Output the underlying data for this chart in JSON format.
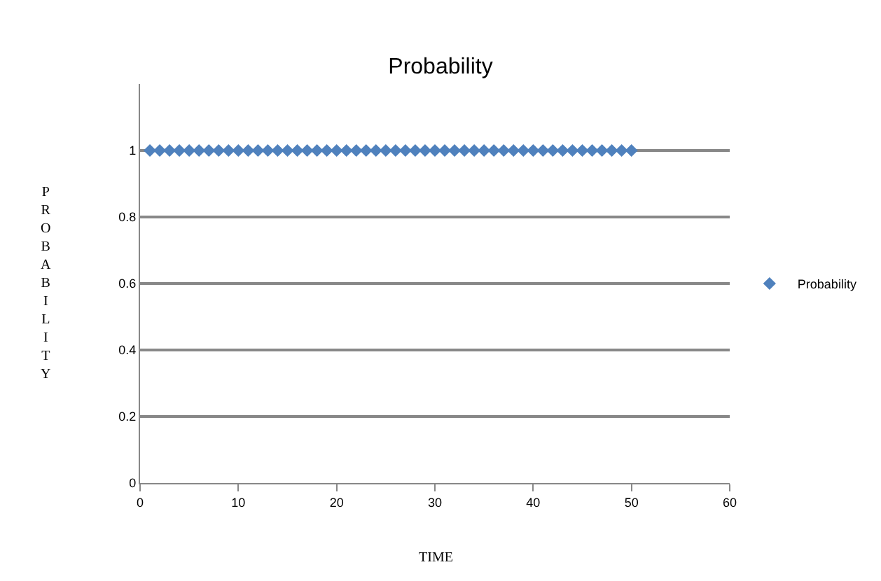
{
  "chart_data": {
    "type": "scatter",
    "title": "Probability",
    "xlabel": "TIME",
    "ylabel": "PROBABILITY",
    "x": [
      1,
      2,
      3,
      4,
      5,
      6,
      7,
      8,
      9,
      10,
      11,
      12,
      13,
      14,
      15,
      16,
      17,
      18,
      19,
      20,
      21,
      22,
      23,
      24,
      25,
      26,
      27,
      28,
      29,
      30,
      31,
      32,
      33,
      34,
      35,
      36,
      37,
      38,
      39,
      40,
      41,
      42,
      43,
      44,
      45,
      46,
      47,
      48,
      49,
      50
    ],
    "series": [
      {
        "name": "Probability",
        "color": "#4f81bd",
        "values": [
          1,
          1,
          1,
          1,
          1,
          1,
          1,
          1,
          1,
          1,
          1,
          1,
          1,
          1,
          1,
          1,
          1,
          1,
          1,
          1,
          1,
          1,
          1,
          1,
          1,
          1,
          1,
          1,
          1,
          1,
          1,
          1,
          1,
          1,
          1,
          1,
          1,
          1,
          1,
          1,
          1,
          1,
          1,
          1,
          1,
          1,
          1,
          1,
          1,
          1
        ]
      }
    ],
    "xlim": [
      0,
      60
    ],
    "xticks": [
      0,
      10,
      20,
      30,
      40,
      50,
      60
    ],
    "ylim": [
      0,
      1.2
    ],
    "yticks": [
      0,
      0.2,
      0.4,
      0.6,
      0.8,
      1
    ],
    "grid": "y",
    "legend": "right",
    "marker": "diamond"
  }
}
